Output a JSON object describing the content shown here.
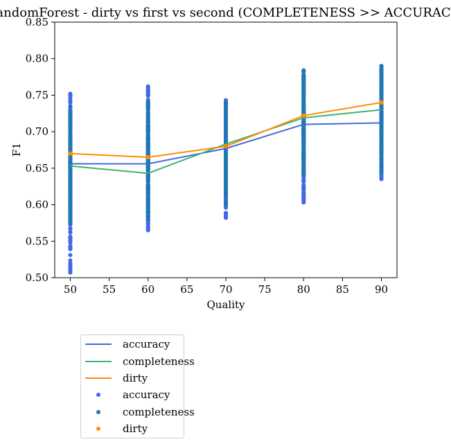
{
  "chart_data": {
    "type": "scatter",
    "title": "RandomForest - dirty vs first vs second (COMPLETENESS >> ACCURACY)",
    "xlabel": "Quality",
    "ylabel": "F1",
    "xlim": [
      48,
      92
    ],
    "ylim": [
      0.5,
      0.85
    ],
    "xticks": [
      50,
      55,
      60,
      65,
      70,
      75,
      80,
      85,
      90
    ],
    "yticks": [
      0.5,
      0.55,
      0.6,
      0.65,
      0.7,
      0.75,
      0.8,
      0.85
    ],
    "x": [
      50,
      60,
      70,
      80,
      90
    ],
    "series": [
      {
        "name": "accuracy",
        "kind": "line",
        "color": "#4169d9",
        "values": [
          0.656,
          0.656,
          0.677,
          0.71,
          0.712
        ]
      },
      {
        "name": "completeness",
        "kind": "line",
        "color": "#3cb371",
        "values": [
          0.653,
          0.643,
          0.683,
          0.719,
          0.73
        ]
      },
      {
        "name": "dirty",
        "kind": "line",
        "color": "#ff8c00",
        "values": [
          0.67,
          0.665,
          0.68,
          0.722,
          0.74
        ]
      }
    ],
    "scatter": [
      {
        "name": "accuracy",
        "color": "#4169e1",
        "ranges": [
          [
            0.507,
            0.752
          ],
          [
            0.565,
            0.762
          ],
          [
            0.582,
            0.743
          ],
          [
            0.603,
            0.784
          ],
          [
            0.635,
            0.79
          ]
        ]
      },
      {
        "name": "completeness",
        "color": "#1f77b4",
        "ranges": [
          [
            0.575,
            0.735
          ],
          [
            0.58,
            0.74
          ],
          [
            0.6,
            0.74
          ],
          [
            0.64,
            0.784
          ],
          [
            0.645,
            0.79
          ]
        ]
      },
      {
        "name": "dirty",
        "color": "#ff8c00",
        "values": [
          0.67,
          0.665,
          0.68,
          0.722,
          0.74
        ]
      }
    ],
    "legend": {
      "position": "below-left",
      "entries": [
        {
          "label": "accuracy",
          "marker": "line",
          "color": "#4169d9"
        },
        {
          "label": "completeness",
          "marker": "line",
          "color": "#3cb371"
        },
        {
          "label": "dirty",
          "marker": "line",
          "color": "#ff8c00"
        },
        {
          "label": "accuracy",
          "marker": "dot",
          "color": "#4169e1"
        },
        {
          "label": "completeness",
          "marker": "dot",
          "color": "#1f77b4"
        },
        {
          "label": "dirty",
          "marker": "dot",
          "color": "#ff8c00"
        }
      ]
    }
  }
}
